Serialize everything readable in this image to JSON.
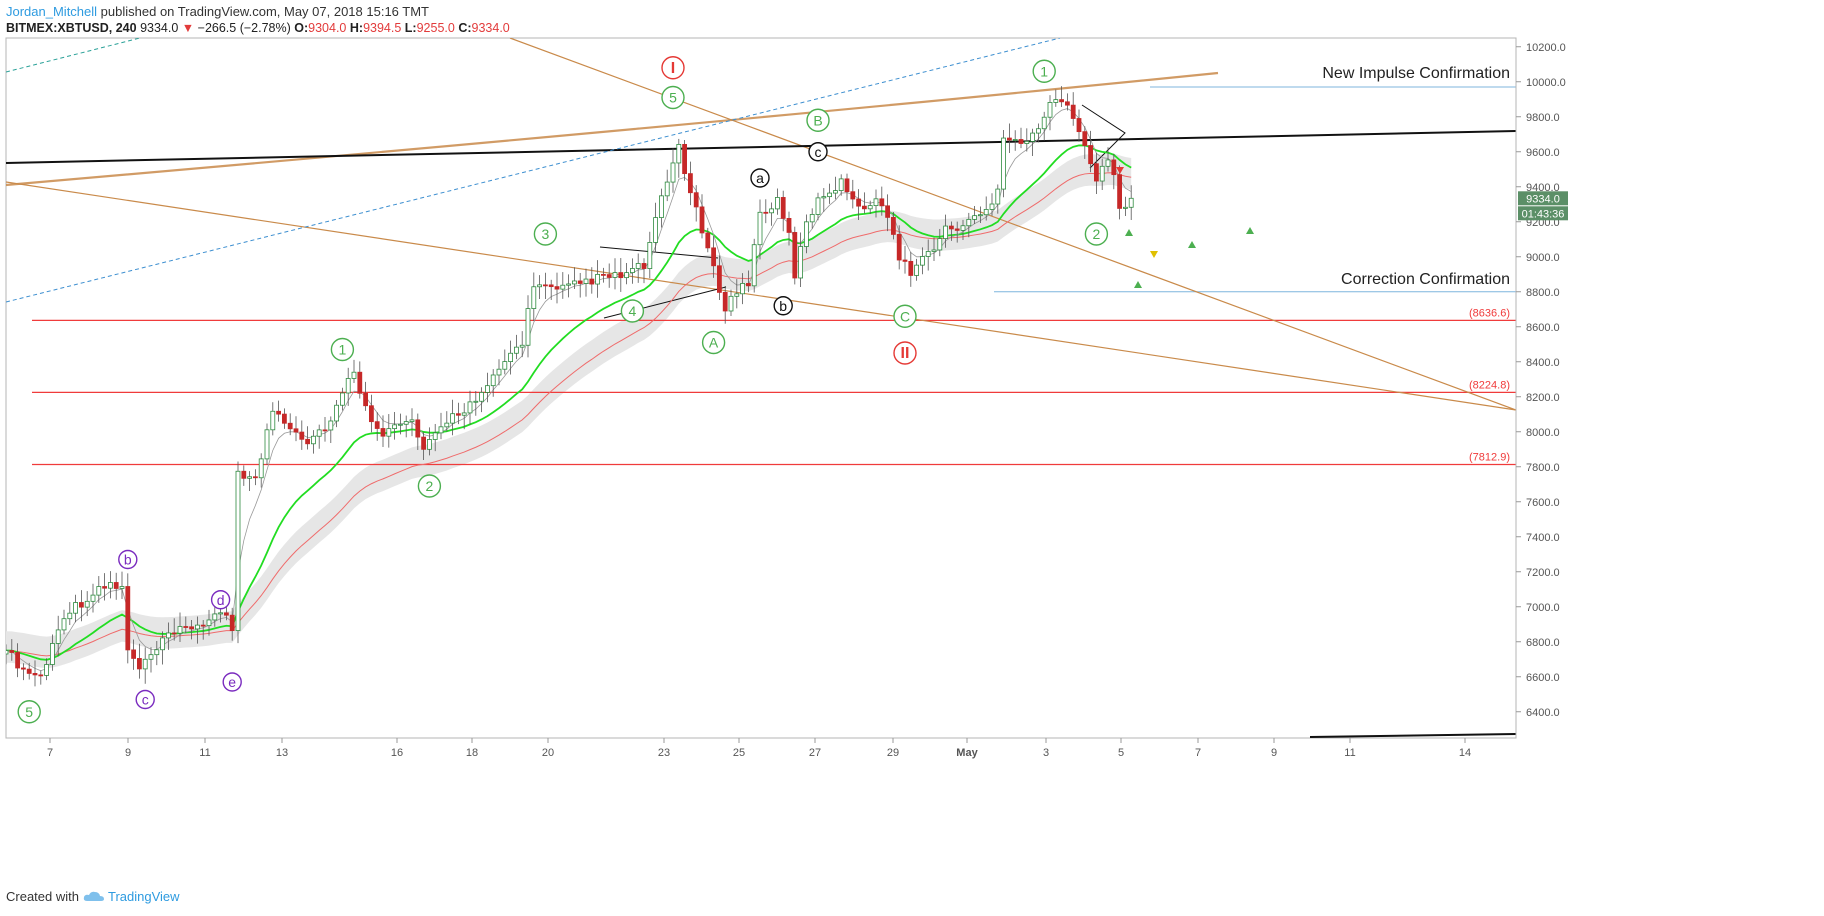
{
  "header": {
    "author": "Jordan_Mitchell",
    "published": "published on TradingView.com, May 07, 2018 15:16 TMT",
    "symbol": "BITMEX:XBTUSD, 240",
    "last": "9334.0",
    "change_arrow": "▼",
    "change": "−266.5 (−2.78%)",
    "o_label": "O:",
    "o": "9304.0",
    "h_label": "H:",
    "h": "9394.5",
    "l_label": "L:",
    "l": "9255.0",
    "c_label": "C:",
    "c": "9334.0"
  },
  "footer": {
    "created_with": "Created with",
    "brand": "TradingView"
  },
  "chart_data": {
    "type": "candlestick",
    "title": "",
    "ylim": [
      6250,
      10250
    ],
    "yticks": [
      6400,
      6600,
      6800,
      7000,
      7200,
      7400,
      7600,
      7800,
      8000,
      8200,
      8400,
      8600,
      8800,
      9000,
      9200,
      9400,
      9600,
      9800,
      10000,
      10200
    ],
    "xticks": [
      "7",
      "9",
      "11",
      "13",
      "16",
      "18",
      "20",
      "23",
      "25",
      "27",
      "29",
      "May",
      "3",
      "5",
      "7",
      "9",
      "11",
      "14"
    ],
    "last_price_label": "9334.0",
    "countdown_label": "01:43:36",
    "horizontal_levels": [
      {
        "value": 8636.6,
        "label": "(8636.6)"
      },
      {
        "value": 8224.8,
        "label": "(8224.8)"
      },
      {
        "value": 7812.9,
        "label": "(7812.9)"
      }
    ],
    "confirmation_lines": [
      {
        "value": 9970,
        "label": "New Impulse Confirmation"
      },
      {
        "value": 8800,
        "label": "Correction Confirmation"
      }
    ],
    "close_anchors": [
      [
        0,
        6750
      ],
      [
        3,
        6640
      ],
      [
        6,
        6600
      ],
      [
        10,
        6960
      ],
      [
        14,
        7050
      ],
      [
        18,
        7130
      ],
      [
        20,
        7100
      ],
      [
        21,
        6750
      ],
      [
        23,
        6640
      ],
      [
        28,
        6830
      ],
      [
        33,
        6900
      ],
      [
        38,
        6950
      ],
      [
        39,
        6880
      ],
      [
        40,
        7780
      ],
      [
        43,
        7720
      ],
      [
        46,
        8130
      ],
      [
        52,
        7950
      ],
      [
        56,
        8060
      ],
      [
        60,
        8360
      ],
      [
        62,
        8130
      ],
      [
        65,
        8000
      ],
      [
        70,
        8060
      ],
      [
        72,
        7880
      ],
      [
        76,
        8070
      ],
      [
        82,
        8200
      ],
      [
        86,
        8400
      ],
      [
        89,
        8520
      ],
      [
        91,
        8850
      ],
      [
        95,
        8800
      ],
      [
        101,
        8870
      ],
      [
        106,
        8890
      ],
      [
        110,
        8950
      ],
      [
        113,
        9320
      ],
      [
        116,
        9640
      ],
      [
        118,
        9360
      ],
      [
        120,
        9150
      ],
      [
        122,
        8920
      ],
      [
        124,
        8720
      ],
      [
        126,
        8800
      ],
      [
        128,
        8860
      ],
      [
        130,
        9250
      ],
      [
        133,
        9310
      ],
      [
        135,
        9120
      ],
      [
        136,
        8900
      ],
      [
        138,
        9180
      ],
      [
        140,
        9340
      ],
      [
        144,
        9420
      ],
      [
        148,
        9280
      ],
      [
        151,
        9320
      ],
      [
        152,
        9250
      ],
      [
        154,
        8980
      ],
      [
        156,
        8920
      ],
      [
        159,
        9020
      ],
      [
        162,
        9150
      ],
      [
        165,
        9180
      ],
      [
        167,
        9220
      ],
      [
        169,
        9260
      ],
      [
        171,
        9400
      ],
      [
        172,
        9700
      ],
      [
        176,
        9640
      ],
      [
        178,
        9760
      ],
      [
        181,
        9900
      ],
      [
        184,
        9820
      ],
      [
        186,
        9660
      ],
      [
        188,
        9430
      ],
      [
        190,
        9560
      ],
      [
        191,
        9450
      ],
      [
        192,
        9280
      ],
      [
        194,
        9334
      ]
    ],
    "wave_labels": [
      {
        "text": "5",
        "style": "green",
        "x": 4,
        "y": 6400
      },
      {
        "text": "b",
        "style": "purple",
        "x": 21,
        "y": 7270
      },
      {
        "text": "c",
        "style": "purple",
        "x": 24,
        "y": 6470
      },
      {
        "text": "d",
        "style": "purple",
        "x": 37,
        "y": 7040
      },
      {
        "text": "e",
        "style": "purple",
        "x": 39,
        "y": 6570
      },
      {
        "text": "1",
        "style": "green",
        "x": 58,
        "y": 8470
      },
      {
        "text": "2",
        "style": "green",
        "x": 73,
        "y": 7690
      },
      {
        "text": "3",
        "style": "green",
        "x": 93,
        "y": 9130
      },
      {
        "text": "4",
        "style": "green",
        "x": 108,
        "y": 8690
      },
      {
        "text": "5",
        "style": "green",
        "x": 115,
        "y": 9910
      },
      {
        "text": "I",
        "style": "red",
        "x": 115,
        "y": 10080
      },
      {
        "text": "A",
        "style": "green",
        "x": 122,
        "y": 8510
      },
      {
        "text": "a",
        "style": "black",
        "x": 130,
        "y": 9450
      },
      {
        "text": "b",
        "style": "black",
        "x": 134,
        "y": 8720
      },
      {
        "text": "B",
        "style": "green",
        "x": 140,
        "y": 9780
      },
      {
        "text": "c",
        "style": "black",
        "x": 140,
        "y": 9600
      },
      {
        "text": "C",
        "style": "green",
        "x": 155,
        "y": 8660
      },
      {
        "text": "II",
        "style": "red",
        "x": 155,
        "y": 8450
      },
      {
        "text": "1",
        "style": "green",
        "x": 179,
        "y": 10060
      },
      {
        "text": "2",
        "style": "green",
        "x": 188,
        "y": 9130
      }
    ]
  },
  "colors": {
    "up": "#2e8b3f",
    "down": "#c62828",
    "ema": "#22dd22",
    "level": "#f03b3b",
    "trend": "#c98a4a",
    "blue": "#3d8fd0",
    "band": "#e6e6e6"
  }
}
